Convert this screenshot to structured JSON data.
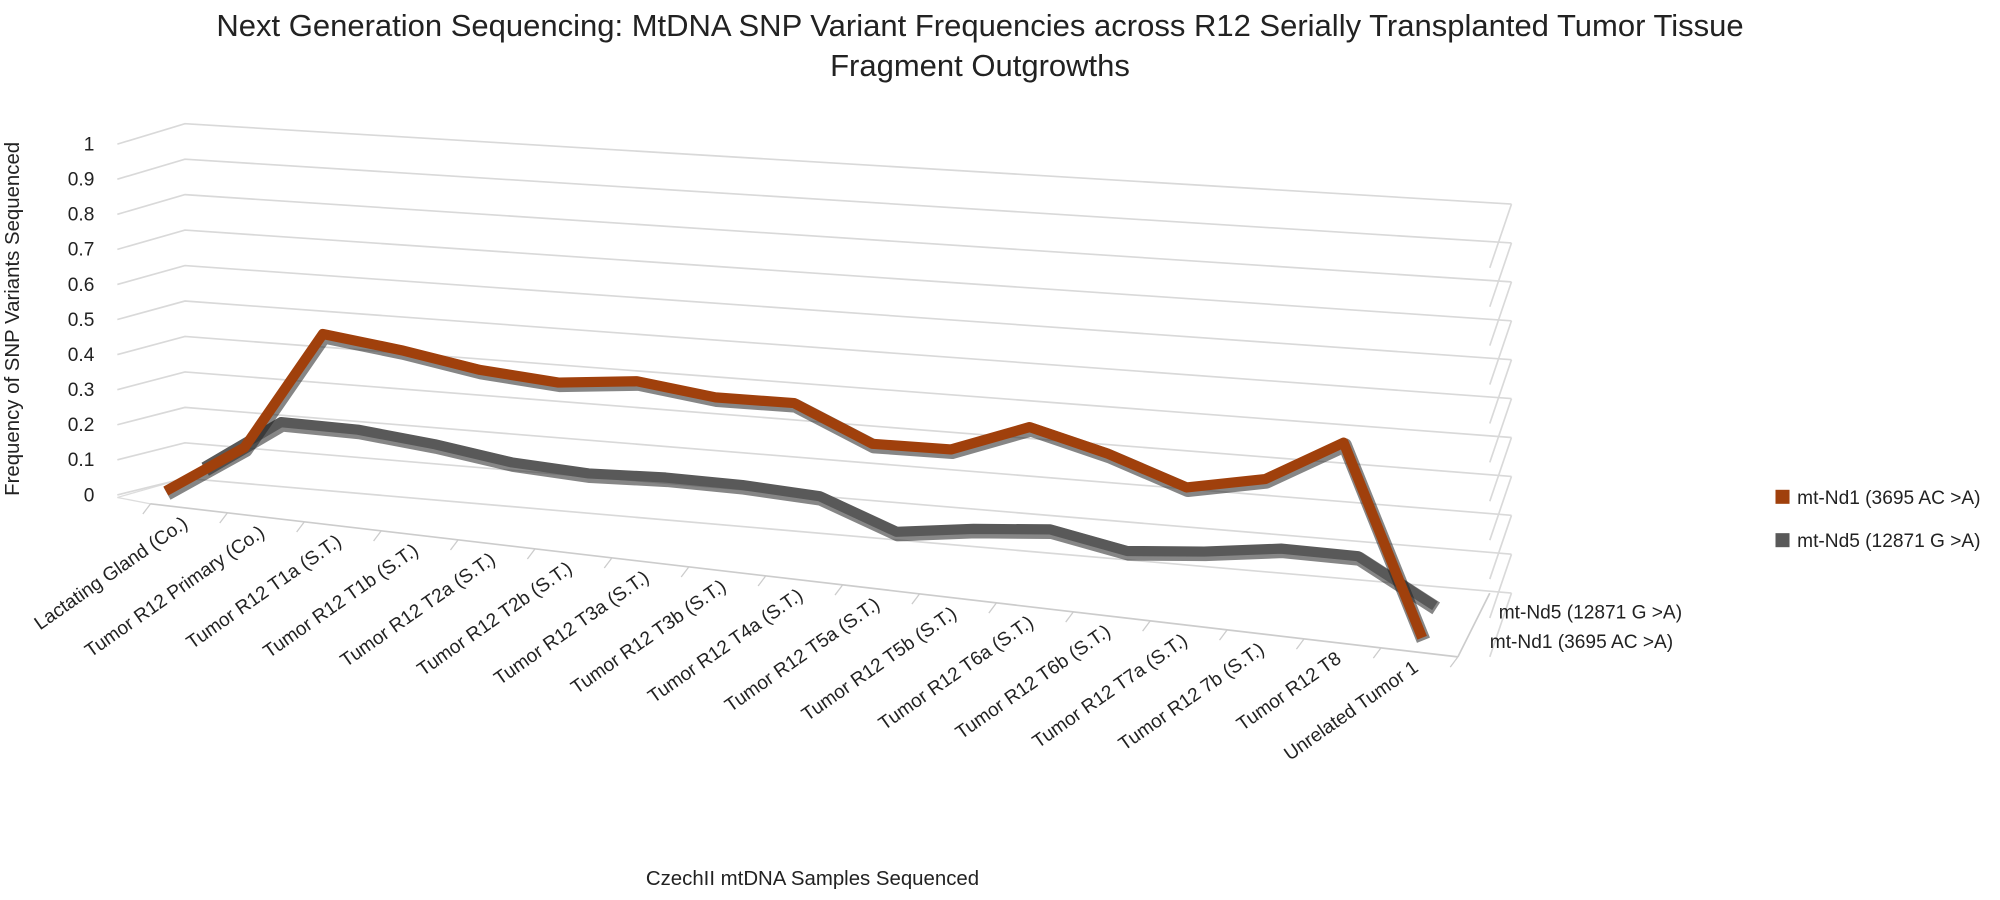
{
  "chart_data": {
    "type": "line3d",
    "title": "Next Generation Sequencing: MtDNA SNP Variant Frequencies across R12 Serially Transplanted Tumor Tissue Fragment Outgrowths",
    "x_label": "CzechII mtDNA Samples Sequenced",
    "y_label": "Frequency of SNP Variants Sequenced",
    "categories": [
      "Lactating Gland (Co.)",
      "Tumor R12 Primary (Co.)",
      "Tumor R12 T1a (S.T.)",
      "Tumor R12 T1b (S.T.)",
      "Tumor R12 T2a (S.T.)",
      "Tumor R12 T2b (S.T.)",
      "Tumor R12 T3a (S.T.)",
      "Tumor R12 T3b (S.T.)",
      "Tumor R12 T4a (S.T.)",
      "Tumor R12 T5a (S.T.)",
      "Tumor R12 T5b (S.T.)",
      "Tumor R12 T6a (S.T.)",
      "Tumor R12 T6b (S.T.)",
      "Tumor R12 T7a (S.T.)",
      "Tumor R12 7b (S.T.)",
      "Tumor R12 T8",
      "Unrelated Tumor 1"
    ],
    "series": [
      {
        "name": "mt-Nd1 (3695 AC >A)",
        "color": "#a0400c",
        "values": [
          0,
          0.15,
          0.5,
          0.48,
          0.45,
          0.44,
          0.47,
          0.45,
          0.46,
          0.37,
          0.38,
          0.47,
          0.42,
          0.35,
          0.4,
          0.53,
          0
        ]
      },
      {
        "name": "mt-Nd5 (12871 G >A)",
        "color": "#595959",
        "values": [
          0.05,
          0.2,
          0.2,
          0.18,
          0.15,
          0.14,
          0.15,
          0.15,
          0.14,
          0.06,
          0.09,
          0.11,
          0.07,
          0.09,
          0.12,
          0.12,
          0
        ]
      }
    ],
    "ylim": [
      0,
      1
    ],
    "yticks": [
      0,
      0.1,
      0.2,
      0.3,
      0.4,
      0.5,
      0.6,
      0.7,
      0.8,
      0.9,
      1
    ],
    "grid": true,
    "legend": "right"
  }
}
